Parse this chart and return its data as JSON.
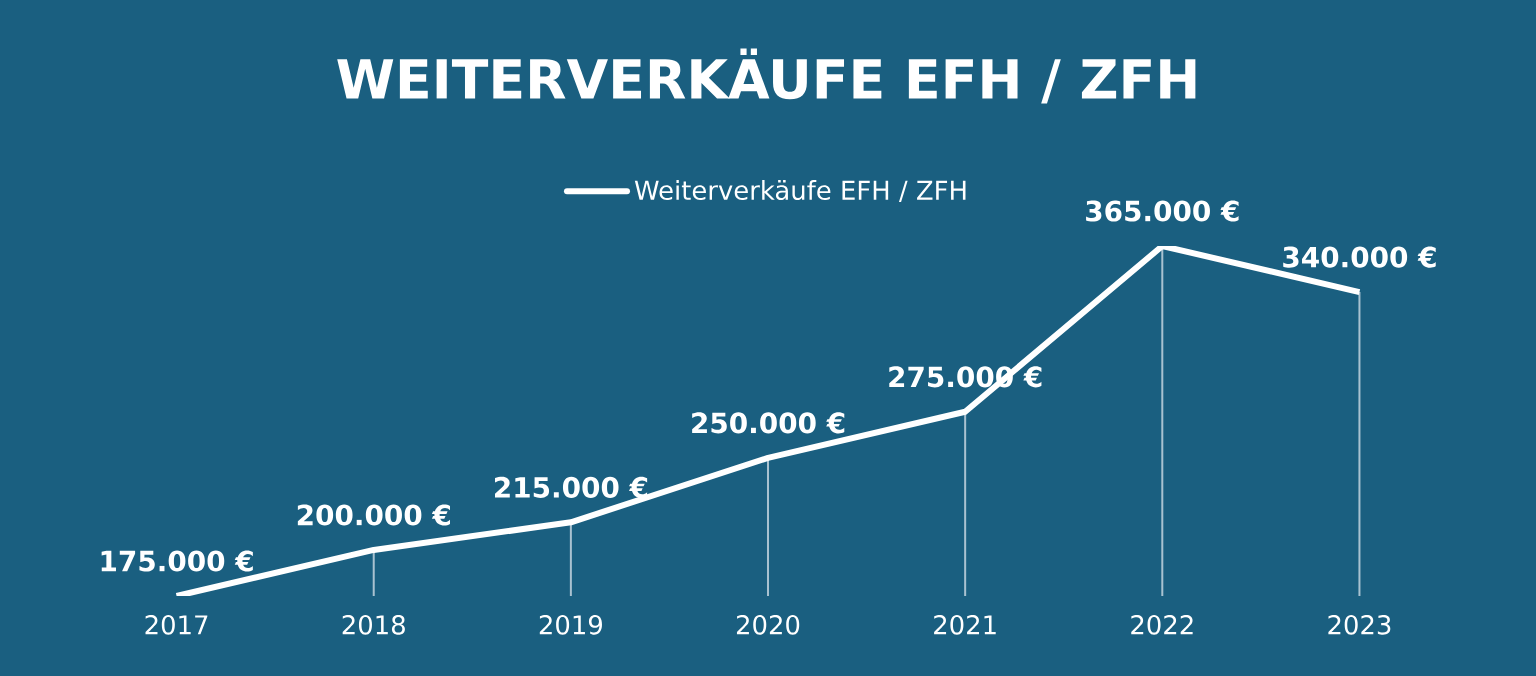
{
  "chart_data": {
    "type": "line",
    "title": "WEITERVERKÄUFE EFH / ZFH",
    "categories": [
      "2017",
      "2018",
      "2019",
      "2020",
      "2021",
      "2022",
      "2023"
    ],
    "series": [
      {
        "name": "Weiterverkäufe EFH / ZFH",
        "color": "#ffffff",
        "values": [
          175000,
          200000,
          215000,
          250000,
          275000,
          365000,
          340000
        ],
        "value_labels": [
          "175.000 €",
          "200.000 €",
          "215.000 €",
          "250.000 €",
          "275.000 €",
          "365.000 €",
          "340.000 €"
        ]
      }
    ],
    "legend": "top",
    "grid": "x",
    "marker": "none",
    "line_style": "solid"
  }
}
